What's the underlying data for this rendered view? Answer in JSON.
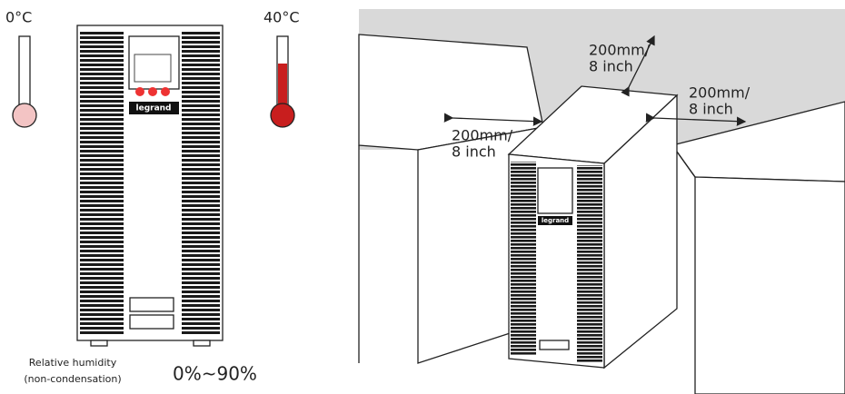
{
  "left_panel": {
    "cold_label": "0°C",
    "hot_label": "40°C",
    "logo": "legrand",
    "humidity_label": [
      "Relative humidity",
      "(non-condensation)"
    ],
    "humidity_range": "0%~90%"
  },
  "right_panel": {
    "logo": "legrand",
    "clearances": [
      {
        "lines": [
          "200mm/",
          "8 inch"
        ]
      },
      {
        "lines": [
          "200mm/",
          "8 inch"
        ]
      },
      {
        "lines": [
          "200mm/",
          "8 inch"
        ]
      }
    ]
  }
}
